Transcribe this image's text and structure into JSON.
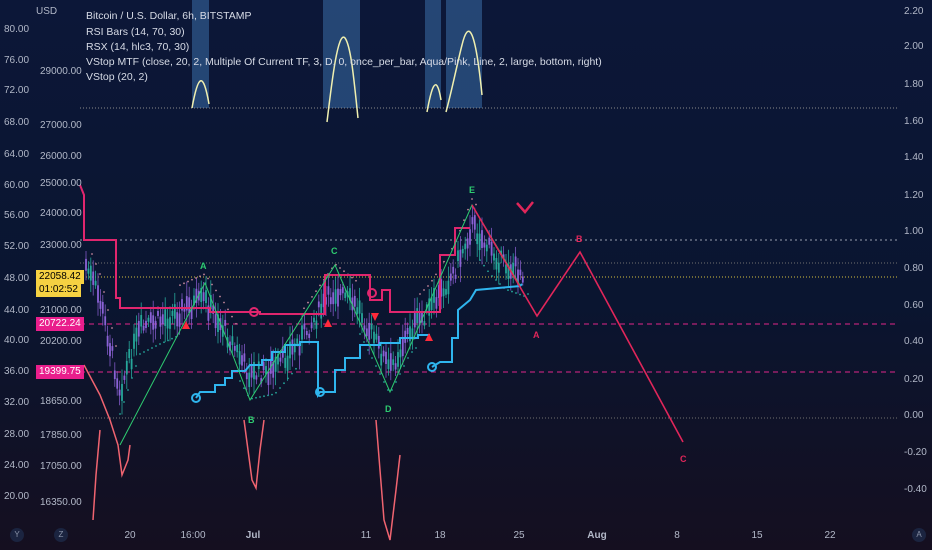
{
  "header": {
    "currency": "USD",
    "title": "Bitcoin / U.S. Dollar, 6h, BITSTAMP",
    "indicators": [
      "RSI Bars (14, 70, 30)",
      "RSX (14, hlc3, 70, 30)",
      "VStop MTF (close, 20, 2, Multiple Of Current TF, 3, D, 0, once_per_bar, Aqua/Pink, Line, 2, large, bottom, right)",
      "VStop (20, 2)"
    ]
  },
  "left_axis": [
    "80.00",
    "76.00",
    "72.00",
    "68.00",
    "64.00",
    "60.00",
    "56.00",
    "52.00",
    "48.00",
    "44.00",
    "40.00",
    "36.00",
    "32.00",
    "28.00",
    "24.00",
    "20.00"
  ],
  "price_axis": [
    "29000.00",
    "27000.00",
    "26000.00",
    "25000.00",
    "24000.00",
    "23000.00",
    "21000.00",
    "20200.00",
    "18650.00",
    "17850.00",
    "17050.00",
    "16350.00"
  ],
  "right_axis": [
    "2.20",
    "2.00",
    "1.80",
    "1.60",
    "1.40",
    "1.20",
    "1.00",
    "0.80",
    "0.60",
    "0.40",
    "0.20",
    "0.00",
    "-0.20",
    "-0.40"
  ],
  "time_axis": [
    "20",
    "16:00",
    "Jul",
    "11",
    "18",
    "25",
    "Aug",
    "8",
    "15",
    "22"
  ],
  "price_tags": {
    "current_price": "22058.42",
    "countdown": "01:02:52",
    "level_1": "20722.24",
    "level_2": "19399.75"
  },
  "pattern_labels": [
    "A",
    "B",
    "C",
    "D",
    "E",
    "A",
    "B",
    "C"
  ],
  "corner_buttons": [
    "Y",
    "Z",
    "A"
  ],
  "colors": {
    "up_candle": "#26a69a",
    "down_candle": "#7e57c2",
    "vstop_aqua": "#2fb5ee",
    "vstop_pink": "#e0266e",
    "projection": "#e0265a",
    "rsx": "#f0f0b0",
    "zigzag": "#2ecc71"
  }
}
